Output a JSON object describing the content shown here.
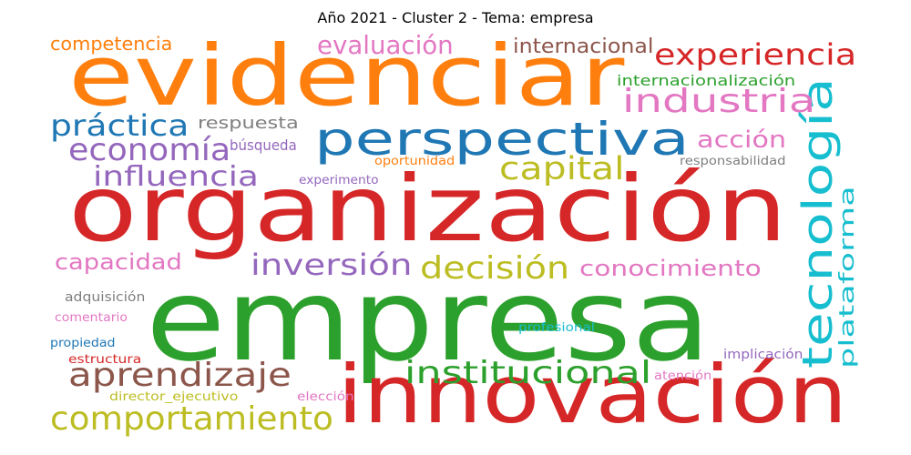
{
  "title": "Año 2021 - Cluster 2 - Tema: empresa",
  "colors": {
    "red": "#d62728",
    "orange": "#ff7f0e",
    "green": "#2ca02c",
    "blue": "#1f77b4",
    "purple": "#9467bd",
    "brown": "#8c564b",
    "pink": "#e377c2",
    "gray": "#7f7f7f",
    "olive": "#bcbd22",
    "cyan": "#17becf"
  },
  "words": [
    {
      "text": "evidenciar",
      "color": "orange"
    },
    {
      "text": "organización",
      "color": "red"
    },
    {
      "text": "empresa",
      "color": "green"
    },
    {
      "text": "innovación",
      "color": "red"
    },
    {
      "text": "perspectiva",
      "color": "blue"
    },
    {
      "text": "tecnología",
      "color": "cyan"
    },
    {
      "text": "experiencia",
      "color": "red"
    },
    {
      "text": "industria",
      "color": "pink"
    },
    {
      "text": "práctica",
      "color": "blue"
    },
    {
      "text": "economía",
      "color": "purple"
    },
    {
      "text": "influencia",
      "color": "purple"
    },
    {
      "text": "capital",
      "color": "olive"
    },
    {
      "text": "acción",
      "color": "pink"
    },
    {
      "text": "evaluación",
      "color": "pink"
    },
    {
      "text": "competencia",
      "color": "orange"
    },
    {
      "text": "internacional",
      "color": "brown"
    },
    {
      "text": "internacionalización",
      "color": "green"
    },
    {
      "text": "respuesta",
      "color": "gray"
    },
    {
      "text": "búsqueda",
      "color": "purple"
    },
    {
      "text": "oportunidad",
      "color": "orange"
    },
    {
      "text": "responsabilidad",
      "color": "gray"
    },
    {
      "text": "experimento",
      "color": "purple"
    },
    {
      "text": "plataforma",
      "color": "cyan"
    },
    {
      "text": "capacidad",
      "color": "pink"
    },
    {
      "text": "inversión",
      "color": "purple"
    },
    {
      "text": "decisión",
      "color": "olive"
    },
    {
      "text": "conocimiento",
      "color": "pink"
    },
    {
      "text": "aprendizaje",
      "color": "brown"
    },
    {
      "text": "institucional",
      "color": "green"
    },
    {
      "text": "comportamiento",
      "color": "olive"
    },
    {
      "text": "adquisición",
      "color": "gray"
    },
    {
      "text": "comentario",
      "color": "pink"
    },
    {
      "text": "propiedad",
      "color": "blue"
    },
    {
      "text": "profesional",
      "color": "cyan"
    },
    {
      "text": "estructura",
      "color": "red"
    },
    {
      "text": "implicación",
      "color": "purple"
    },
    {
      "text": "atención",
      "color": "pink"
    },
    {
      "text": "director_ejecutivo",
      "color": "olive"
    },
    {
      "text": "elección",
      "color": "pink"
    }
  ]
}
